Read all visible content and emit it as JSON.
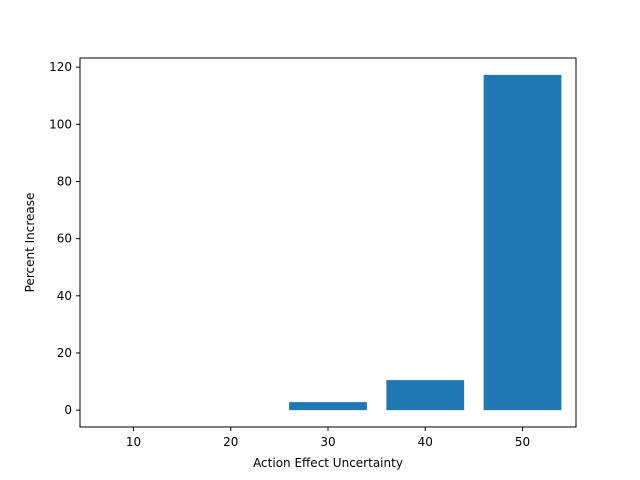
{
  "chart_data": {
    "type": "bar",
    "categories": [
      10,
      20,
      30,
      40,
      50
    ],
    "values": [
      0,
      0,
      2.8,
      10.5,
      117.3
    ],
    "title": "",
    "xlabel": "Action Effect Uncertainty",
    "ylabel": "Percent Increase",
    "xlim": [
      4.5,
      55.5
    ],
    "ylim": [
      -5.9,
      123.2
    ],
    "xticks": [
      10,
      20,
      30,
      40,
      50
    ],
    "yticks": [
      0,
      20,
      40,
      60,
      80,
      100,
      120
    ],
    "bar_width": 8,
    "bar_color": "#1f77b4",
    "grid": false,
    "legend": "none"
  }
}
